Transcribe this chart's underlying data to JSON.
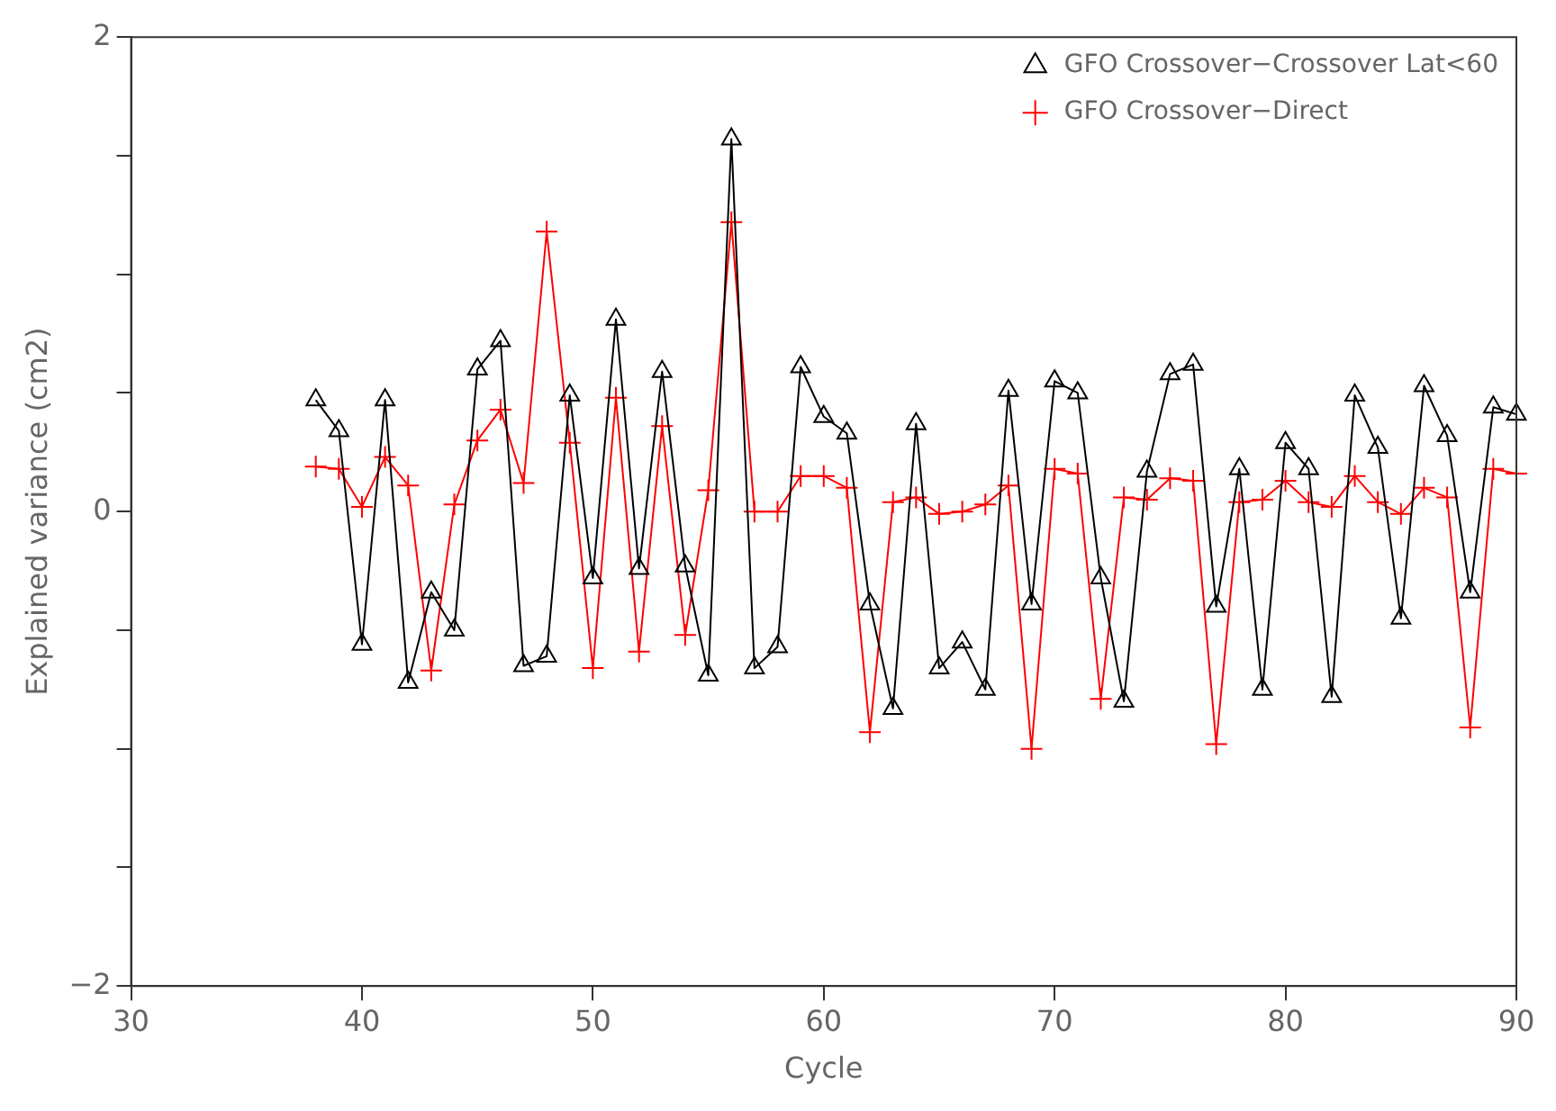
{
  "chart_data": {
    "type": "line",
    "xlabel": "Cycle",
    "ylabel": "Explained variance (cm2)",
    "xlim": [
      30,
      90
    ],
    "xticks": [
      30,
      40,
      50,
      60,
      70,
      80,
      90
    ],
    "ylim": [
      -2,
      2
    ],
    "yticks": [
      -2,
      {
        "value": -1.5,
        "label": null
      },
      {
        "value": -1,
        "label": null
      },
      {
        "value": -0.5,
        "label": null
      },
      0,
      {
        "value": 0.5,
        "label": null
      },
      {
        "value": 1,
        "label": null
      },
      {
        "value": 1.5,
        "label": null
      },
      2
    ],
    "grid": false,
    "legend": "top right",
    "line_style": "solid",
    "x": [
      38,
      39,
      40,
      41,
      42,
      43,
      44,
      45,
      46,
      47,
      48,
      49,
      50,
      51,
      52,
      53,
      54,
      55,
      56,
      57,
      58,
      59,
      60,
      61,
      62,
      63,
      64,
      65,
      66,
      67,
      68,
      69,
      70,
      71,
      72,
      73,
      74,
      75,
      76,
      77,
      78,
      79,
      80,
      81,
      82,
      83,
      84,
      85,
      86,
      87,
      88,
      89,
      90
    ],
    "series": [
      {
        "name": "GFO Crossover−Crossover Lat<60",
        "color": "#000000",
        "marker": "triangle",
        "values": [
          0.47,
          0.34,
          -0.56,
          0.47,
          -0.72,
          -0.34,
          -0.5,
          0.6,
          0.72,
          -0.65,
          -0.61,
          0.49,
          -0.28,
          0.81,
          -0.24,
          0.59,
          -0.23,
          -0.69,
          1.57,
          -0.66,
          -0.57,
          0.61,
          0.4,
          0.33,
          -0.39,
          -0.83,
          0.37,
          -0.66,
          -0.55,
          -0.75,
          0.51,
          -0.39,
          0.55,
          0.5,
          -0.28,
          -0.8,
          0.17,
          0.58,
          0.62,
          -0.4,
          0.18,
          -0.75,
          0.29,
          0.18,
          -0.78,
          0.49,
          0.27,
          -0.45,
          0.53,
          0.32,
          -0.34,
          0.44,
          0.41
        ]
      },
      {
        "name": "GFO Crossover−Direct",
        "color": "#ff0000",
        "marker": "cross",
        "values": [
          0.19,
          0.18,
          0.02,
          0.23,
          0.11,
          -0.67,
          0.03,
          0.3,
          0.43,
          0.12,
          1.18,
          0.29,
          -0.66,
          0.48,
          -0.59,
          0.36,
          -0.52,
          0.09,
          1.22,
          0,
          0,
          0.15,
          0.15,
          0.1,
          -0.93,
          0.04,
          0.06,
          -0.01,
          0,
          0.03,
          0.11,
          -1,
          0.18,
          0.16,
          -0.79,
          0.06,
          0.05,
          0.14,
          0.13,
          -0.98,
          0.04,
          0.05,
          0.13,
          0.04,
          0.02,
          0.15,
          0.04,
          -0.01,
          0.1,
          0.06,
          -0.91,
          0.18,
          0.16
        ]
      }
    ]
  }
}
